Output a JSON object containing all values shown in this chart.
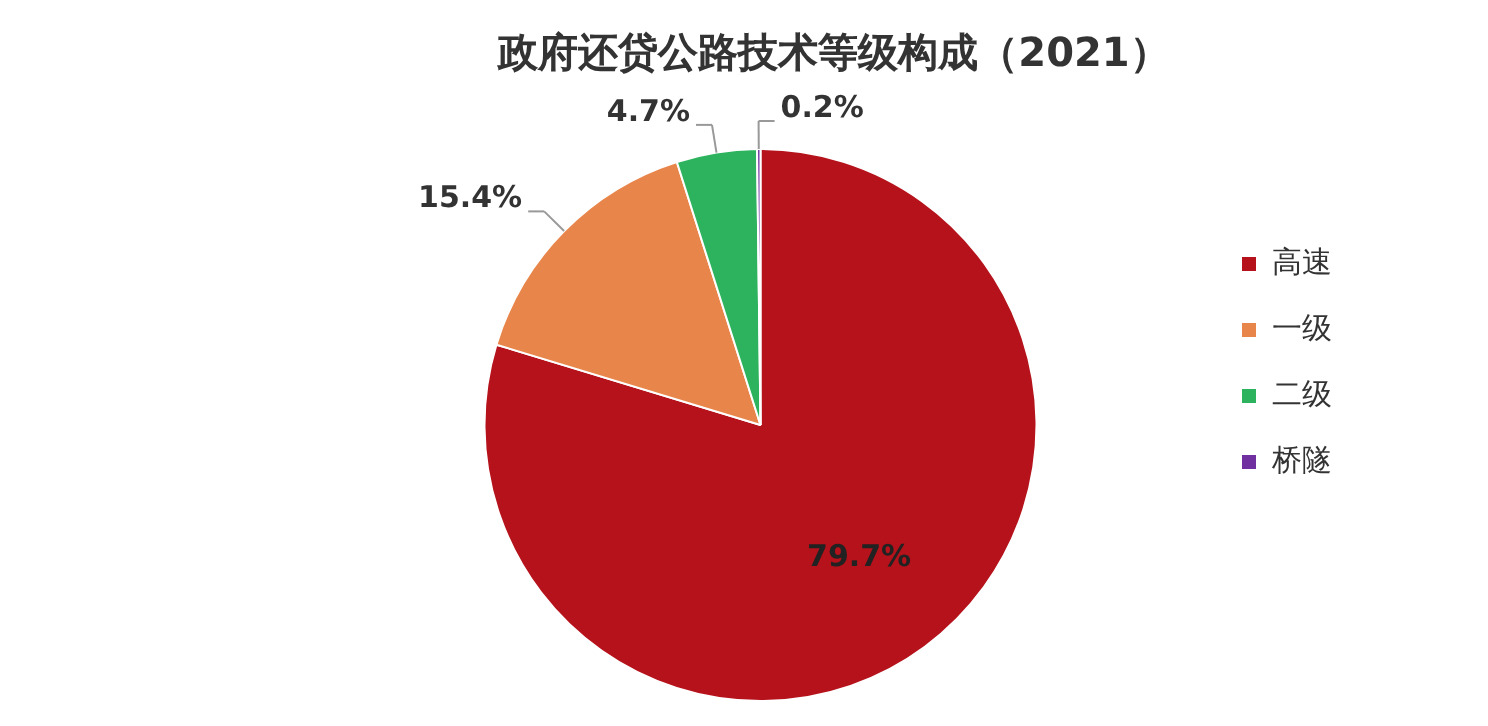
{
  "chart_data": {
    "type": "pie",
    "title": "政府还贷公路技术等级构成（2021）",
    "categories": [
      "高速",
      "一级",
      "二级",
      "桥隧"
    ],
    "values": [
      79.7,
      15.4,
      4.7,
      0.2
    ],
    "value_labels": [
      "79.7%",
      "15.4%",
      "4.7%",
      "0.2%"
    ],
    "colors": [
      "#b5121b",
      "#e8854a",
      "#2db35d",
      "#7030a0"
    ],
    "legend": "right"
  }
}
